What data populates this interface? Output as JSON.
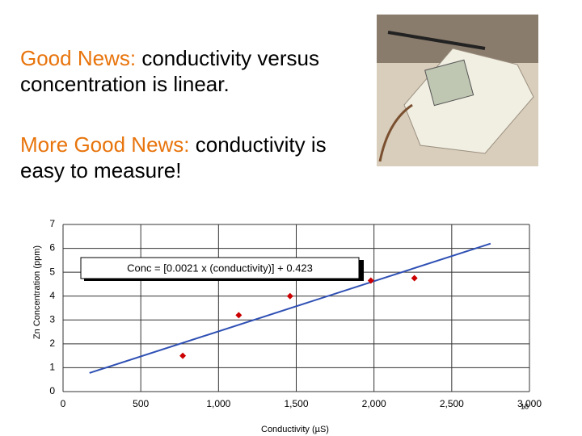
{
  "headline_1": {
    "emphasis": "Good News:",
    "text": "conductivity versus concentration is linear."
  },
  "headline_2": {
    "emphasis": "More Good News:",
    "text": "conductivity is easy to measure!"
  },
  "slide_number": "18",
  "chart_data": {
    "type": "scatter",
    "x_label": "Conductivity (µS)",
    "y_label": "Zn Concentration (ppm)",
    "annotation": "Conc = [0.0021 x (conductivity)] + 0.423",
    "x": [
      770,
      1130,
      1460,
      1980,
      2260
    ],
    "values": [
      1.5,
      3.2,
      4.0,
      4.65,
      4.75
    ],
    "color": "#cc0000",
    "trendline": {
      "x": [
        170,
        2750
      ],
      "values": [
        0.78,
        6.2
      ],
      "color": "#2f50b4"
    },
    "xlim": [
      0,
      3000
    ],
    "xticks": [
      0,
      500,
      {
        "value": 1000,
        "label": "1,000"
      },
      {
        "value": 1500,
        "label": "1,500"
      },
      {
        "value": 2000,
        "label": "2,000"
      },
      {
        "value": 2500,
        "label": "2,500"
      },
      {
        "value": 3000,
        "label": "3,000"
      }
    ],
    "ylim": [
      0,
      7
    ],
    "yticks": [
      0,
      1,
      2,
      3,
      4,
      5,
      6,
      7
    ],
    "grid": true
  }
}
